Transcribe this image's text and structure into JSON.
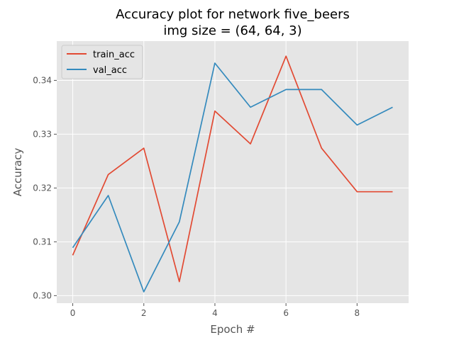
{
  "chart_data": {
    "type": "line",
    "title_line1": "Accuracy plot for network five_beers",
    "title_line2": "img size = (64, 64, 3)",
    "xlabel": "Epoch #",
    "ylabel": "Accuracy",
    "x": [
      0,
      1,
      2,
      3,
      4,
      5,
      6,
      7,
      8,
      9
    ],
    "xticks": [
      0,
      2,
      4,
      6,
      8
    ],
    "xtick_labels": [
      "0",
      "2",
      "4",
      "6",
      "8"
    ],
    "yticks": [
      0.3,
      0.31,
      0.32,
      0.33,
      0.34
    ],
    "ytick_labels": [
      "0.30",
      "0.31",
      "0.32",
      "0.33",
      "0.34"
    ],
    "xlim": [
      -0.45,
      9.45
    ],
    "ylim": [
      0.2986,
      0.3473
    ],
    "grid": true,
    "legend_position": "top-left",
    "series": [
      {
        "name": "train_acc",
        "color": "#E24A33",
        "values": [
          0.3075,
          0.3225,
          0.3274,
          0.3026,
          0.3343,
          0.3282,
          0.3445,
          0.3274,
          0.3193,
          0.3193
        ]
      },
      {
        "name": "val_acc",
        "color": "#348ABD",
        "values": [
          0.3089,
          0.3186,
          0.3007,
          0.3137,
          0.3432,
          0.335,
          0.3383,
          0.3383,
          0.3317,
          0.335
        ]
      }
    ]
  }
}
